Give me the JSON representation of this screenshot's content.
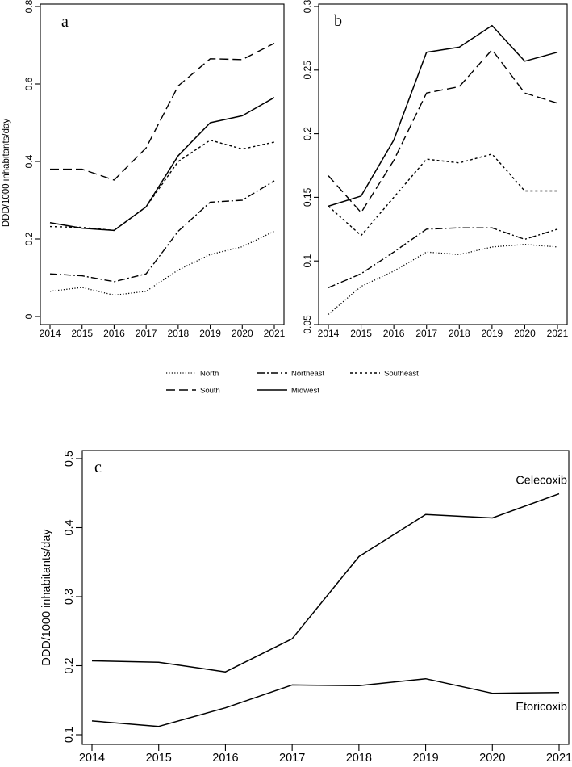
{
  "figure": {
    "shared_ylabel_top": "DDD/1000 inhabitants/day",
    "legend": {
      "entries": [
        {
          "name": "North",
          "style": "dotted"
        },
        {
          "name": "Northeast",
          "style": "dashdot"
        },
        {
          "name": "Southeast",
          "style": "shortdash"
        },
        {
          "name": "South",
          "style": "longdash"
        },
        {
          "name": "Midwest",
          "style": "solid"
        }
      ]
    }
  },
  "chart_data": [
    {
      "panel": "a",
      "type": "line",
      "title": "a",
      "xlabel": "",
      "ylabel": "DDD/1000 inhabitants/day",
      "categories": [
        "2014",
        "2015",
        "2016",
        "2017",
        "2018",
        "2019",
        "2020",
        "2021"
      ],
      "ylim": [
        0,
        0.8
      ],
      "yticks": [
        0,
        0.2,
        0.4,
        0.6,
        0.8
      ],
      "ytick_labels": [
        "0",
        "0.2",
        "0.4",
        "0.6",
        "0.8"
      ],
      "grid": false,
      "legend_position": "below",
      "series": [
        {
          "name": "North",
          "style": "dotted",
          "values": [
            0.065,
            0.075,
            0.055,
            0.065,
            0.12,
            0.16,
            0.18,
            0.22
          ]
        },
        {
          "name": "Northeast",
          "style": "dashdot",
          "values": [
            0.11,
            0.105,
            0.09,
            0.11,
            0.22,
            0.295,
            0.3,
            0.35
          ]
        },
        {
          "name": "Southeast",
          "style": "shortdash",
          "values": [
            0.232,
            0.23,
            0.222,
            0.283,
            0.4,
            0.455,
            0.432,
            0.45
          ]
        },
        {
          "name": "South",
          "style": "longdash",
          "values": [
            0.38,
            0.38,
            0.352,
            0.435,
            0.595,
            0.665,
            0.663,
            0.705
          ]
        },
        {
          "name": "Midwest",
          "style": "solid",
          "values": [
            0.242,
            0.228,
            0.222,
            0.283,
            0.415,
            0.5,
            0.518,
            0.565
          ]
        }
      ]
    },
    {
      "panel": "b",
      "type": "line",
      "title": "b",
      "xlabel": "",
      "ylabel": "",
      "categories": [
        "2014",
        "2015",
        "2016",
        "2017",
        "2018",
        "2019",
        "2020",
        "2021"
      ],
      "ylim": [
        0.05,
        0.3
      ],
      "yticks": [
        0.05,
        0.1,
        0.15,
        0.2,
        0.25,
        0.3
      ],
      "ytick_labels": [
        "0.05",
        "0.1",
        "0.15",
        "0.2",
        "0.25",
        "0.3"
      ],
      "grid": false,
      "legend_position": "below",
      "series": [
        {
          "name": "North",
          "style": "dotted",
          "values": [
            0.058,
            0.08,
            0.092,
            0.107,
            0.105,
            0.111,
            0.113,
            0.111
          ]
        },
        {
          "name": "Northeast",
          "style": "dashdot",
          "values": [
            0.079,
            0.09,
            0.107,
            0.125,
            0.126,
            0.126,
            0.117,
            0.125
          ]
        },
        {
          "name": "Southeast",
          "style": "shortdash",
          "values": [
            0.143,
            0.12,
            0.15,
            0.18,
            0.177,
            0.184,
            0.155,
            0.155
          ]
        },
        {
          "name": "South",
          "style": "longdash",
          "values": [
            0.167,
            0.138,
            0.179,
            0.232,
            0.237,
            0.266,
            0.232,
            0.224
          ]
        },
        {
          "name": "Midwest",
          "style": "solid",
          "values": [
            0.143,
            0.151,
            0.195,
            0.264,
            0.268,
            0.285,
            0.257,
            0.264
          ]
        }
      ]
    },
    {
      "panel": "c",
      "type": "line",
      "title": "c",
      "xlabel": "",
      "ylabel": "DDD/1000 inhabitants/day",
      "categories": [
        "2014",
        "2015",
        "2016",
        "2017",
        "2018",
        "2019",
        "2020",
        "2021"
      ],
      "ylim": [
        0.1,
        0.5
      ],
      "yticks": [
        0.1,
        0.2,
        0.3,
        0.4,
        0.5
      ],
      "ytick_labels": [
        "0.1",
        "0.2",
        "0.3",
        "0.4",
        "0.5"
      ],
      "grid": false,
      "legend_position": "none",
      "series": [
        {
          "name": "Celecoxib",
          "style": "solid",
          "values": [
            0.207,
            0.205,
            0.191,
            0.239,
            0.358,
            0.419,
            0.414,
            0.449
          ]
        },
        {
          "name": "Etoricoxib",
          "style": "solid",
          "values": [
            0.12,
            0.112,
            0.139,
            0.172,
            0.171,
            0.181,
            0.16,
            0.161
          ]
        }
      ],
      "annotations": [
        "Celecoxib",
        "Etoricoxib"
      ]
    }
  ]
}
